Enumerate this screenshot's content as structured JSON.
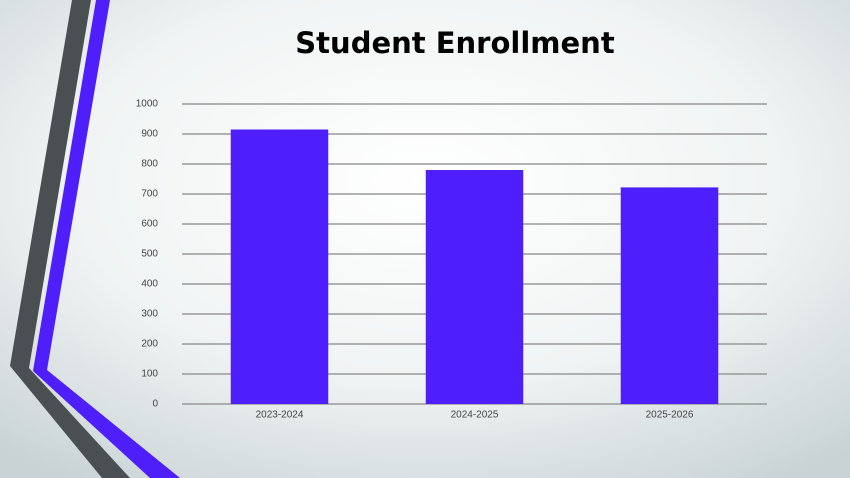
{
  "chart_data": {
    "type": "bar",
    "title": "Student Enrollment",
    "categories": [
      "2023-2024",
      "2024-2025",
      "2025-2026"
    ],
    "values": [
      915,
      780,
      722
    ],
    "color": "#4f1ffb",
    "ylim": [
      0,
      1000
    ],
    "yticks": [
      0,
      100,
      200,
      300,
      400,
      500,
      600,
      700,
      800,
      900,
      1000
    ],
    "grid": true
  }
}
